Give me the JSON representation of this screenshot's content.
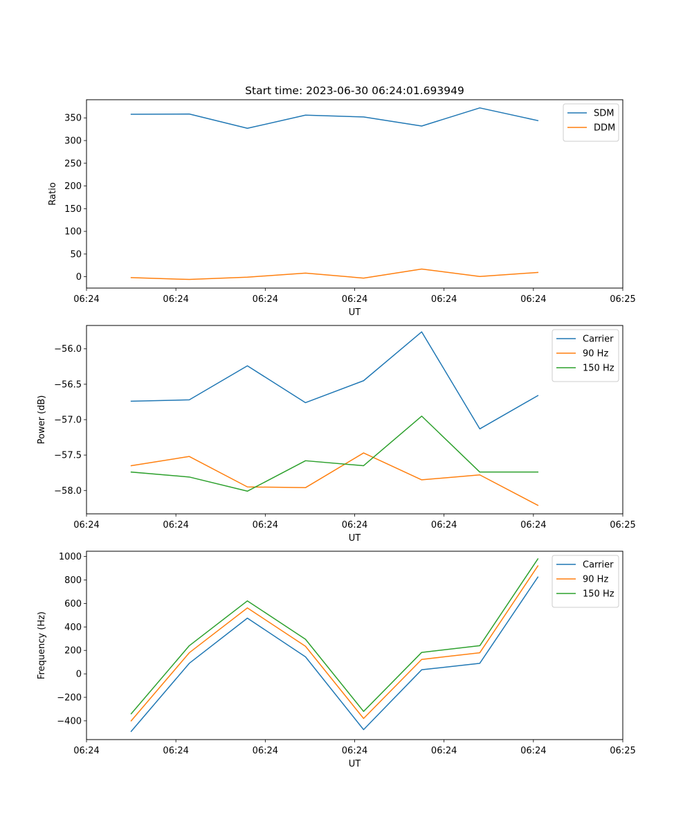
{
  "chart_data": [
    {
      "type": "line",
      "title": "Start time: 2023-06-30 06:24:01.693949",
      "xlabel": "UT",
      "ylabel": "Ratio",
      "xlim": [
        0,
        6
      ],
      "ylim": [
        -25,
        390
      ],
      "x_ticks": [
        0,
        1,
        2,
        3,
        4,
        5,
        6
      ],
      "x_tick_labels": [
        "06:24",
        "06:24",
        "06:24",
        "06:24",
        "06:24",
        "06:24",
        "06:25"
      ],
      "y_ticks": [
        0,
        50,
        100,
        150,
        200,
        250,
        300,
        350
      ],
      "y_tick_labels": [
        "0",
        "50",
        "100",
        "150",
        "200",
        "250",
        "300",
        "350"
      ],
      "x": [
        0.5,
        1.15,
        1.8,
        2.45,
        3.1,
        3.75,
        4.4,
        5.05
      ],
      "series": [
        {
          "name": "SDM",
          "color": "#1f77b4",
          "values": [
            358,
            358.5,
            327,
            356,
            352,
            332,
            372,
            344
          ]
        },
        {
          "name": "DDM",
          "color": "#ff7f0e",
          "values": [
            -2,
            -6,
            -1,
            8,
            -3,
            17,
            0.5,
            9.5
          ]
        }
      ],
      "legend": "top-right",
      "grid": false
    },
    {
      "type": "line",
      "title": "",
      "xlabel": "UT",
      "ylabel": "Power (dB)",
      "xlim": [
        0,
        6
      ],
      "ylim": [
        -58.33,
        -55.67
      ],
      "x_ticks": [
        0,
        1,
        2,
        3,
        4,
        5,
        6
      ],
      "x_tick_labels": [
        "06:24",
        "06:24",
        "06:24",
        "06:24",
        "06:24",
        "06:24",
        "06:25"
      ],
      "y_ticks": [
        -58.0,
        -57.5,
        -57.0,
        -56.5,
        -56.0
      ],
      "y_tick_labels": [
        "−58.0",
        "−57.5",
        "−57.0",
        "−56.5",
        "−56.0"
      ],
      "x": [
        0.5,
        1.15,
        1.8,
        2.45,
        3.1,
        3.75,
        4.4,
        5.05
      ],
      "series": [
        {
          "name": "Carrier",
          "color": "#1f77b4",
          "values": [
            -56.74,
            -56.72,
            -56.24,
            -56.76,
            -56.45,
            -55.76,
            -57.13,
            -56.66
          ]
        },
        {
          "name": "90 Hz",
          "color": "#ff7f0e",
          "values": [
            -57.65,
            -57.52,
            -57.95,
            -57.96,
            -57.47,
            -57.85,
            -57.78,
            -58.21
          ]
        },
        {
          "name": "150 Hz",
          "color": "#2ca02c",
          "values": [
            -57.74,
            -57.81,
            -58.01,
            -57.58,
            -57.65,
            -56.95,
            -57.74,
            -57.74
          ]
        }
      ],
      "legend": "top-right",
      "grid": false
    },
    {
      "type": "line",
      "title": "",
      "xlabel": "UT",
      "ylabel": "Frequency (Hz)",
      "xlim": [
        0,
        6
      ],
      "ylim": [
        -560,
        1045
      ],
      "x_ticks": [
        0,
        1,
        2,
        3,
        4,
        5,
        6
      ],
      "x_tick_labels": [
        "06:24",
        "06:24",
        "06:24",
        "06:24",
        "06:24",
        "06:24",
        "06:25"
      ],
      "y_ticks": [
        -400,
        -200,
        0,
        200,
        400,
        600,
        800,
        1000
      ],
      "y_tick_labels": [
        "−400",
        "−200",
        "0",
        "200",
        "400",
        "600",
        "800",
        "1000"
      ],
      "x": [
        0.5,
        1.15,
        1.8,
        2.45,
        3.1,
        3.75,
        4.4,
        5.05
      ],
      "series": [
        {
          "name": "Carrier",
          "color": "#1f77b4",
          "values": [
            -490,
            90,
            475,
            145,
            -475,
            35,
            90,
            825
          ]
        },
        {
          "name": "90 Hz",
          "color": "#ff7f0e",
          "values": [
            -400,
            180,
            562,
            235,
            -380,
            123,
            180,
            920
          ]
        },
        {
          "name": "150 Hz",
          "color": "#2ca02c",
          "values": [
            -340,
            240,
            622,
            295,
            -320,
            183,
            240,
            980
          ]
        }
      ],
      "legend": "top-right",
      "grid": false
    }
  ]
}
